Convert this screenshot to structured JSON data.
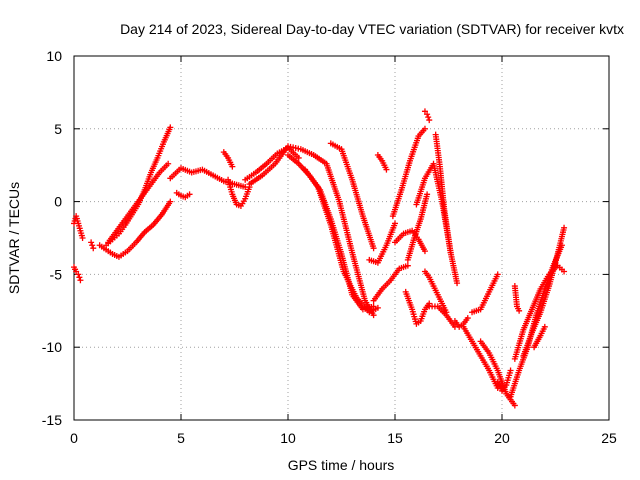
{
  "chart_data": {
    "type": "scatter",
    "title": "Day 214 of 2023, Sidereal Day-to-day VTEC variation (SDTVAR) for receiver kvtx",
    "xlabel": "GPS time / hours",
    "ylabel": "SDTVAR / TECUs",
    "xlim": [
      0,
      25
    ],
    "ylim": [
      -15,
      10
    ],
    "xticks": [
      "0",
      "5",
      "10",
      "15",
      "20",
      "25"
    ],
    "yticks": [
      "-15",
      "-10",
      "-5",
      "0",
      "5",
      "10"
    ],
    "grid": true,
    "legend": "none",
    "marker": "+",
    "color": "#ff0000",
    "series": [
      {
        "x": [
          0.0,
          0.1,
          0.2,
          0.3,
          0.4
        ],
        "y": [
          -1.5,
          -1.0,
          -1.5,
          -2.0,
          -2.5
        ]
      },
      {
        "x": [
          0.0,
          0.1,
          0.2,
          0.3
        ],
        "y": [
          -4.5,
          -4.8,
          -5.0,
          -5.4
        ]
      },
      {
        "x": [
          0.8,
          0.9
        ],
        "y": [
          -2.8,
          -3.2
        ]
      },
      {
        "x": [
          1.2,
          1.5,
          1.8,
          2.1,
          2.5,
          2.9,
          3.3,
          3.7,
          4.1,
          4.5
        ],
        "y": [
          -3.0,
          -3.3,
          -3.6,
          -3.8,
          -3.4,
          -2.8,
          -2.1,
          -1.6,
          -0.9,
          0.0
        ]
      },
      {
        "x": [
          1.5,
          1.8,
          2.1,
          2.4,
          2.7,
          3.0,
          3.3,
          3.6,
          3.9,
          4.2,
          4.5
        ],
        "y": [
          -3.0,
          -2.6,
          -2.2,
          -1.6,
          -0.9,
          -0.2,
          0.8,
          2.0,
          3.0,
          4.1,
          5.1
        ]
      },
      {
        "x": [
          1.6,
          2.0,
          2.4,
          2.8,
          3.2,
          3.6,
          4.0,
          4.4
        ],
        "y": [
          -2.8,
          -2.0,
          -1.2,
          -0.4,
          0.4,
          1.2,
          2.0,
          2.6
        ]
      },
      {
        "x": [
          4.8,
          5.0,
          5.2,
          5.4
        ],
        "y": [
          0.6,
          0.4,
          0.3,
          0.5
        ]
      },
      {
        "x": [
          4.5,
          5.0,
          5.5,
          6.0,
          6.5,
          7.0,
          7.5,
          8.0
        ],
        "y": [
          1.6,
          2.3,
          2.0,
          2.2,
          1.8,
          1.4,
          1.2,
          1.0
        ]
      },
      {
        "x": [
          7.2,
          7.4,
          7.6,
          7.8,
          8.0,
          8.2
        ],
        "y": [
          1.5,
          0.5,
          -0.2,
          -0.3,
          0.2,
          1.0
        ]
      },
      {
        "x": [
          7.0,
          7.2,
          7.4
        ],
        "y": [
          3.4,
          3.0,
          2.4
        ]
      },
      {
        "x": [
          8.0,
          8.5,
          9.0,
          9.5,
          10.0,
          10.5
        ],
        "y": [
          1.5,
          2.0,
          2.6,
          3.3,
          3.7,
          3.0
        ]
      },
      {
        "x": [
          8.2,
          8.8,
          9.4,
          10.0,
          10.6,
          11.2,
          11.8,
          12.4,
          13.0,
          13.6,
          14.0
        ],
        "y": [
          1.2,
          1.8,
          2.6,
          3.8,
          3.6,
          3.2,
          2.6,
          0.0,
          -3.5,
          -6.8,
          -7.8
        ]
      },
      {
        "x": [
          10.0,
          10.5,
          11.0,
          11.5,
          12.0,
          12.5,
          13.0,
          13.5,
          14.0
        ],
        "y": [
          3.2,
          2.6,
          1.8,
          0.8,
          -1.2,
          -3.6,
          -6.4,
          -7.4,
          -7.2
        ]
      },
      {
        "x": [
          10.8,
          11.4,
          12.0,
          12.6,
          13.2,
          13.8,
          14.2
        ],
        "y": [
          2.2,
          1.0,
          -1.6,
          -4.8,
          -6.6,
          -7.6,
          -7.3
        ]
      },
      {
        "x": [
          12.0,
          12.5,
          13.0,
          13.5,
          14.0
        ],
        "y": [
          4.0,
          3.6,
          1.5,
          -1.0,
          -3.2
        ]
      },
      {
        "x": [
          13.8,
          14.2,
          14.6,
          15.0
        ],
        "y": [
          -4.0,
          -4.2,
          -3.0,
          -1.5
        ]
      },
      {
        "x": [
          14.0,
          14.4,
          14.8,
          15.2,
          15.6
        ],
        "y": [
          -6.8,
          -6.0,
          -5.4,
          -4.6,
          -4.4
        ]
      },
      {
        "x": [
          14.2,
          14.4,
          14.6
        ],
        "y": [
          3.2,
          2.8,
          2.2
        ]
      },
      {
        "x": [
          14.9,
          15.3,
          15.7,
          16.1,
          16.4
        ],
        "y": [
          -1.0,
          0.8,
          2.8,
          4.5,
          5.0
        ]
      },
      {
        "x": [
          15.0,
          15.4,
          15.8,
          16.1,
          16.4
        ],
        "y": [
          -2.8,
          -2.2,
          -2.0,
          -2.6,
          -3.4
        ]
      },
      {
        "x": [
          15.5,
          15.8,
          16.0,
          16.2,
          16.4,
          16.6
        ],
        "y": [
          -6.2,
          -7.4,
          -8.4,
          -8.2,
          -7.4,
          -7.0
        ]
      },
      {
        "x": [
          15.6,
          15.9,
          16.2,
          16.5
        ],
        "y": [
          -4.0,
          -2.5,
          -1.2,
          0.5
        ]
      },
      {
        "x": [
          16.4,
          16.5,
          16.6
        ],
        "y": [
          6.2,
          6.0,
          5.6
        ]
      },
      {
        "x": [
          16.4,
          16.6,
          16.8,
          17.0,
          17.2,
          17.4
        ],
        "y": [
          -4.8,
          -5.2,
          -5.8,
          -6.4,
          -7.0,
          -7.6
        ]
      },
      {
        "x": [
          16.0,
          16.4,
          16.8,
          17.2,
          17.6
        ],
        "y": [
          -0.2,
          1.6,
          2.6,
          0.0,
          -3.5
        ]
      },
      {
        "x": [
          16.9,
          17.1,
          17.3,
          17.6,
          17.9
        ],
        "y": [
          4.6,
          2.4,
          -0.5,
          -3.5,
          -5.6
        ]
      },
      {
        "x": [
          16.6,
          17.0,
          17.4,
          17.8
        ],
        "y": [
          -7.2,
          -7.2,
          -7.8,
          -8.6
        ]
      },
      {
        "x": [
          17.8,
          18.0,
          18.2,
          18.4
        ],
        "y": [
          -8.2,
          -8.6,
          -8.4,
          -8.0
        ]
      },
      {
        "x": [
          18.6,
          19.0,
          19.4,
          19.8
        ],
        "y": [
          -7.6,
          -7.4,
          -6.2,
          -5.0
        ]
      },
      {
        "x": [
          18.2,
          18.6,
          19.0,
          19.4,
          19.8
        ],
        "y": [
          -8.6,
          -9.6,
          -10.6,
          -11.6,
          -12.8
        ]
      },
      {
        "x": [
          19.0,
          19.4,
          19.8,
          20.2,
          20.6
        ],
        "y": [
          -9.6,
          -10.4,
          -11.6,
          -13.2,
          -14.0
        ]
      },
      {
        "x": [
          19.8,
          20.0,
          20.2,
          20.4
        ],
        "y": [
          -12.4,
          -13.0,
          -12.6,
          -11.6
        ]
      },
      {
        "x": [
          20.6,
          20.7,
          20.8
        ],
        "y": [
          -5.8,
          -7.2,
          -7.5
        ]
      },
      {
        "x": [
          20.4,
          20.8,
          21.2,
          21.6,
          22.0,
          22.4,
          22.8
        ],
        "y": [
          -13.4,
          -11.6,
          -10.0,
          -7.8,
          -6.0,
          -4.4,
          -3.0
        ]
      },
      {
        "x": [
          20.6,
          21.0,
          21.4,
          21.8,
          22.2,
          22.6,
          22.9
        ],
        "y": [
          -10.8,
          -8.8,
          -7.4,
          -6.0,
          -5.0,
          -4.4,
          -4.8
        ]
      },
      {
        "x": [
          21.0,
          21.4,
          21.8,
          22.2,
          22.6,
          22.9
        ],
        "y": [
          -10.6,
          -9.0,
          -7.6,
          -5.8,
          -3.6,
          -1.8
        ]
      },
      {
        "x": [
          21.5,
          21.8,
          22.0
        ],
        "y": [
          -10.0,
          -9.2,
          -8.6
        ]
      }
    ]
  }
}
